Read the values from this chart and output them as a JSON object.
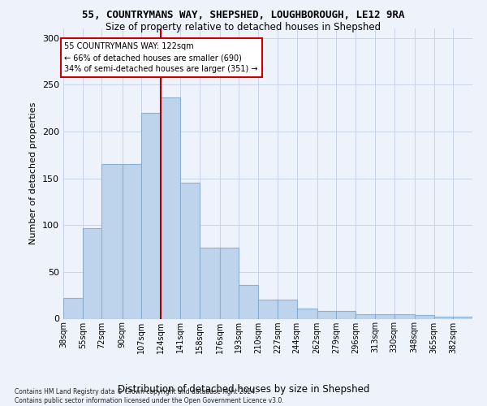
{
  "title": "55, COUNTRYMANS WAY, SHEPSHED, LOUGHBOROUGH, LE12 9RA",
  "subtitle": "Size of property relative to detached houses in Shepshed",
  "xlabel_bottom": "Distribution of detached houses by size in Shepshed",
  "ylabel": "Number of detached properties",
  "categories": [
    "38sqm",
    "55sqm",
    "72sqm",
    "90sqm",
    "107sqm",
    "124sqm",
    "141sqm",
    "158sqm",
    "176sqm",
    "193sqm",
    "210sqm",
    "227sqm",
    "244sqm",
    "262sqm",
    "279sqm",
    "296sqm",
    "313sqm",
    "330sqm",
    "348sqm",
    "365sqm",
    "382sqm"
  ],
  "bar_heights": [
    22,
    97,
    165,
    165,
    220,
    236,
    145,
    76,
    76,
    36,
    20,
    20,
    11,
    8,
    8,
    5,
    5,
    5,
    4,
    2,
    2
  ],
  "bar_color": "#bed3ec",
  "bar_edge_color": "#8ab0d4",
  "property_line_x": 124,
  "annotation_text": "55 COUNTRYMANS WAY: 122sqm\n← 66% of detached houses are smaller (690)\n34% of semi-detached houses are larger (351) →",
  "annotation_box_color": "#ffffff",
  "annotation_box_edge": "#cc0000",
  "line_color": "#aa0000",
  "ylim": [
    0,
    310
  ],
  "yticks": [
    0,
    50,
    100,
    150,
    200,
    250,
    300
  ],
  "footnote": "Contains HM Land Registry data © Crown copyright and database right 2024.\nContains public sector information licensed under the Open Government Licence v3.0.",
  "bg_color": "#eef2fa",
  "grid_color": "#c8d4e8"
}
